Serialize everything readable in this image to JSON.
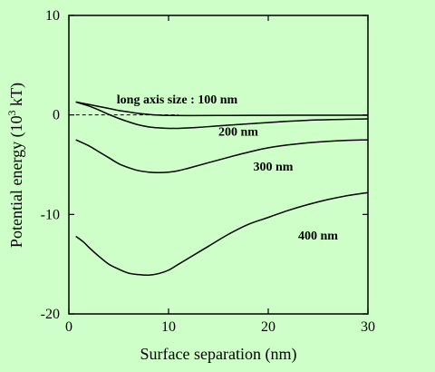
{
  "chart_data": {
    "type": "line",
    "xlabel": "Surface separation (nm)",
    "ylabel": "Potential energy (10",
    "ylabel_sup": "3",
    "ylabel_unit": " kT)",
    "xlim": [
      0,
      30
    ],
    "ylim": [
      -20,
      10
    ],
    "xticks": [
      0,
      10,
      20,
      30
    ],
    "yticks": [
      -20,
      -10,
      0,
      10
    ],
    "xtick_labels": [
      "0",
      "10",
      "20",
      "30"
    ],
    "ytick_labels": [
      "-20",
      "-10",
      "0",
      "10"
    ],
    "grid": false,
    "reference_line": {
      "y": 0,
      "x_range": [
        0.7,
        11
      ],
      "style": "dashed"
    },
    "series": [
      {
        "name": "long axis size : 100 nm",
        "label_at": [
          4.8,
          1.15
        ],
        "x": [
          0.7,
          2,
          3,
          4,
          5,
          6,
          7,
          8,
          9,
          10,
          12,
          15,
          20,
          25,
          30
        ],
        "y": [
          1.3,
          1.05,
          0.85,
          0.65,
          0.45,
          0.3,
          0.15,
          0.05,
          -0.02,
          -0.05,
          -0.06,
          -0.05,
          -0.04,
          -0.03,
          -0.03
        ]
      },
      {
        "name": "200 nm",
        "label_at": [
          15,
          -2.1
        ],
        "x": [
          0.7,
          2,
          3,
          4,
          5,
          6,
          7,
          8,
          9,
          10,
          11,
          13,
          15,
          18,
          21,
          25,
          30
        ],
        "y": [
          1.3,
          0.9,
          0.5,
          0.05,
          -0.35,
          -0.7,
          -1.0,
          -1.2,
          -1.3,
          -1.35,
          -1.35,
          -1.25,
          -1.1,
          -0.9,
          -0.7,
          -0.5,
          -0.4
        ]
      },
      {
        "name": "300 nm",
        "label_at": [
          18.5,
          -5.6
        ],
        "x": [
          0.7,
          2,
          3,
          4,
          5,
          6,
          7,
          8,
          9,
          10,
          11,
          12,
          14,
          17,
          20,
          23,
          27,
          30
        ],
        "y": [
          -2.5,
          -3.1,
          -3.7,
          -4.3,
          -4.9,
          -5.3,
          -5.6,
          -5.75,
          -5.8,
          -5.75,
          -5.6,
          -5.35,
          -4.8,
          -4.0,
          -3.3,
          -2.9,
          -2.6,
          -2.5
        ]
      },
      {
        "name": "400 nm",
        "label_at": [
          23,
          -12.5
        ],
        "x": [
          0.7,
          1.5,
          2,
          3,
          4,
          5,
          6,
          7,
          8,
          9,
          10,
          11,
          12,
          14,
          16,
          18,
          20,
          22,
          24,
          26,
          28,
          30
        ],
        "y": [
          -12.2,
          -12.8,
          -13.3,
          -14.2,
          -15.0,
          -15.5,
          -15.9,
          -16.05,
          -16.1,
          -15.95,
          -15.6,
          -15.0,
          -14.4,
          -13.2,
          -12.0,
          -11.0,
          -10.3,
          -9.6,
          -9.0,
          -8.5,
          -8.1,
          -7.8
        ]
      }
    ]
  }
}
